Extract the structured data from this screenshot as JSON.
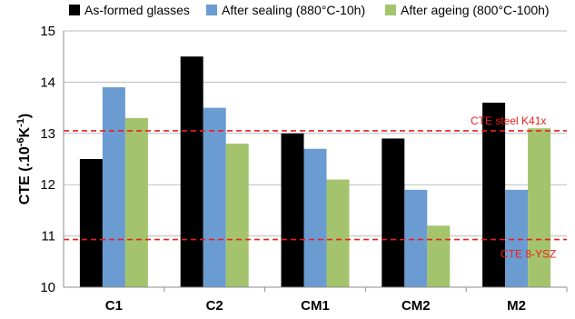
{
  "chart_data": {
    "type": "bar",
    "title": "",
    "xlabel": "",
    "ylabel": {
      "main": "CTE (.10",
      "sup1": "-6",
      "mid": "K",
      "sup2": "-1",
      "end": ")"
    },
    "ylim": [
      10,
      15
    ],
    "yticks": [
      10,
      11,
      12,
      13,
      14,
      15
    ],
    "grid": true,
    "legend_position": "top",
    "categories": [
      "C1",
      "C2",
      "CM1",
      "CM2",
      "M2"
    ],
    "series": [
      {
        "name": "As-formed glasses",
        "color": "#000000",
        "values": [
          12.5,
          14.5,
          13.0,
          12.9,
          13.6
        ]
      },
      {
        "name": "After sealing (880°C-10h)",
        "color": "#6a9bd1",
        "values": [
          13.9,
          13.5,
          12.7,
          11.9,
          11.9
        ]
      },
      {
        "name": "After ageing (800°C-100h)",
        "color": "#a3c46c",
        "values": [
          13.3,
          12.8,
          12.1,
          11.2,
          13.1
        ]
      }
    ],
    "reference_lines": [
      {
        "label": "CTE steel K41x",
        "value": 13.05,
        "color": "#ee1c1c"
      },
      {
        "label": "CTE 8-YSZ",
        "value": 10.93,
        "color": "#ee1c1c"
      }
    ]
  }
}
